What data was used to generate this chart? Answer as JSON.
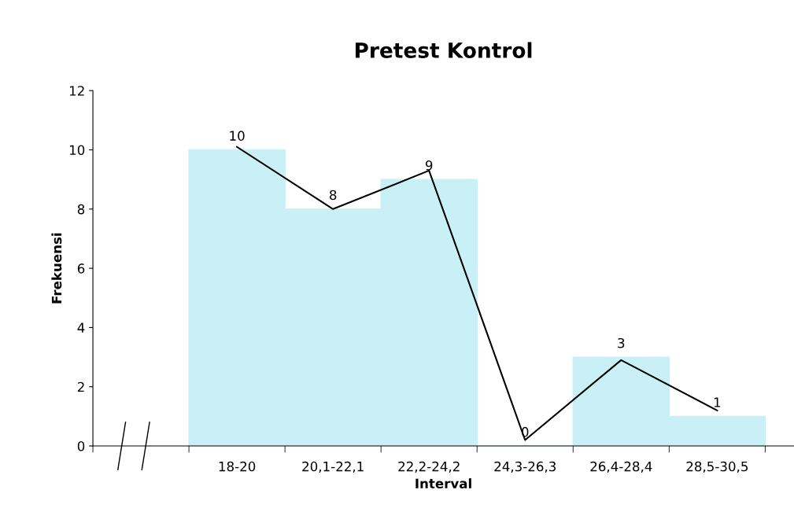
{
  "chart_data": {
    "type": "bar",
    "title": "Pretest Kontrol",
    "xlabel": "Interval",
    "ylabel": "Frekuensi",
    "categories": [
      "18-20",
      "20,1-22,1",
      "22,2-24,2",
      "24,3-26,3",
      "26,4-28,4",
      "28,5-30,5"
    ],
    "series": [
      {
        "color": "#c8f0f6",
        "values": [
          10,
          8,
          9,
          0,
          3,
          1
        ],
        "value_labels": [
          "10",
          "8",
          "9",
          "0",
          "3",
          "1"
        ]
      },
      {
        "type": "line",
        "color": "#000000",
        "values": [
          10.1,
          8.0,
          9.3,
          0.2,
          2.9,
          1.2
        ]
      }
    ],
    "ylim": [
      0,
      12
    ],
    "yticks": [
      0,
      2,
      4,
      6,
      8,
      10,
      12
    ],
    "grid": false,
    "legend": false
  }
}
